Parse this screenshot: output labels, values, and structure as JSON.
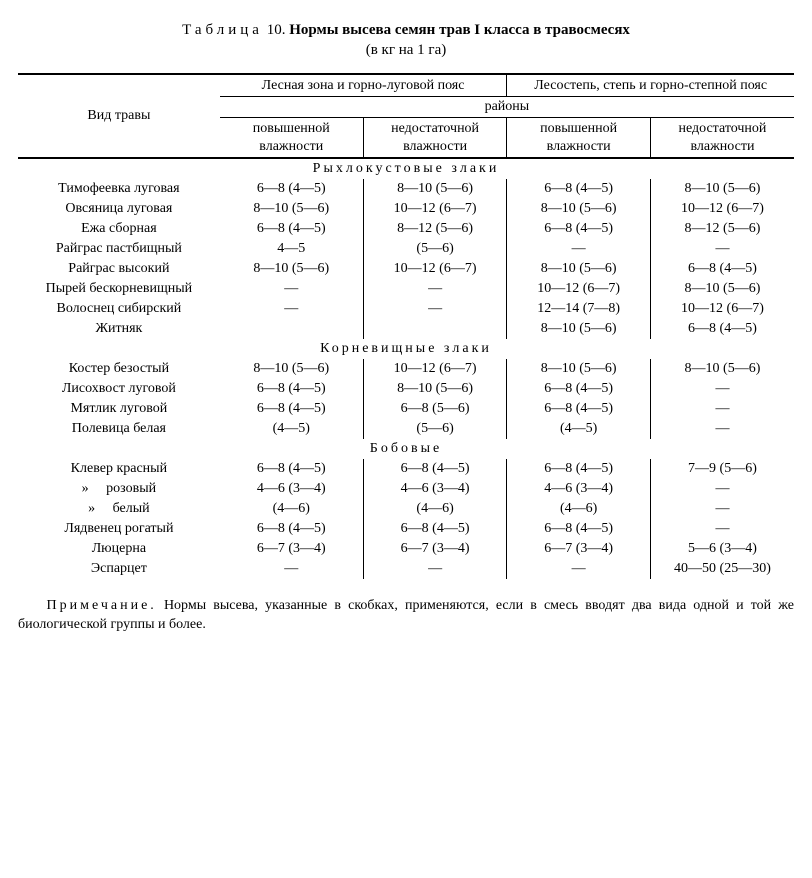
{
  "title": {
    "prefix_spaced": "Таблица",
    "num": "10.",
    "main": "Нормы высева семян трав I класса в травосмесях",
    "sub": "(в кг на 1 га)"
  },
  "header": {
    "species": "Вид травы",
    "zone1": "Лесная зона и горно-луговой пояс",
    "zone2": "Лесостепь, степь и горно-степной пояс",
    "districts": "районы",
    "col1": "повышенной влажности",
    "col2": "недостаточной влажности",
    "col3": "повышенной влажности",
    "col4": "недостаточной влажности"
  },
  "sections": {
    "s1": "Рыхлокустовые злаки",
    "s2": "Корневищные злаки",
    "s3": "Бобовые"
  },
  "rows": {
    "r1": {
      "n": "Тимофеевка луговая",
      "c1": "6—8 (4—5)",
      "c2": "8—10 (5—6)",
      "c3": "6—8 (4—5)",
      "c4": "8—10 (5—6)"
    },
    "r2": {
      "n": "Овсяница луговая",
      "c1": "8—10 (5—6)",
      "c2": "10—12 (6—7)",
      "c3": "8—10 (5—6)",
      "c4": "10—12 (6—7)"
    },
    "r3": {
      "n": "Ежа сборная",
      "c1": "6—8 (4—5)",
      "c2": "8—12 (5—6)",
      "c3": "6—8 (4—5)",
      "c4": "8—12 (5—6)"
    },
    "r4": {
      "n": "Райграс пастбищный",
      "c1": "4—5",
      "c2": "(5—6)",
      "c3": "—",
      "c4": "—"
    },
    "r5": {
      "n": "Райграс высокий",
      "c1": "8—10 (5—6)",
      "c2": "10—12 (6—7)",
      "c3": "8—10 (5—6)",
      "c4": "6—8 (4—5)"
    },
    "r6": {
      "n": "Пырей бескорневищный",
      "c1": "—",
      "c2": "—",
      "c3": "10—12 (6—7)",
      "c4": "8—10 (5—6)"
    },
    "r7": {
      "n": "Волоснец сибирский",
      "c1": "—",
      "c2": "—",
      "c3": "12—14 (7—8)",
      "c4": "10—12 (6—7)"
    },
    "r8": {
      "n": "Житняк",
      "c1": "",
      "c2": "",
      "c3": "8—10 (5—6)",
      "c4": "6—8 (4—5)"
    },
    "r9": {
      "n": "Костер безостый",
      "c1": "8—10 (5—6)",
      "c2": "10—12 (6—7)",
      "c3": "8—10 (5—6)",
      "c4": "8—10 (5—6)"
    },
    "r10": {
      "n": "Лисохвост луговой",
      "c1": "6—8 (4—5)",
      "c2": "8—10 (5—6)",
      "c3": "6—8 (4—5)",
      "c4": "—"
    },
    "r11": {
      "n": "Мятлик луговой",
      "c1": "6—8 (4—5)",
      "c2": "6—8 (5—6)",
      "c3": "6—8 (4—5)",
      "c4": "—"
    },
    "r12": {
      "n": "Полевица белая",
      "c1": "(4—5)",
      "c2": "(5—6)",
      "c3": "(4—5)",
      "c4": "—"
    },
    "r13": {
      "n": "Клевер красный",
      "c1": "6—8 (4—5)",
      "c2": "6—8 (4—5)",
      "c3": "6—8 (4—5)",
      "c4": "7—9 (5—6)"
    },
    "r14": {
      "n": "»     розовый",
      "c1": "4—6 (3—4)",
      "c2": "4—6 (3—4)",
      "c3": "4—6 (3—4)",
      "c4": "—"
    },
    "r15": {
      "n": "»     белый",
      "c1": "(4—6)",
      "c2": "(4—6)",
      "c3": "(4—6)",
      "c4": "—"
    },
    "r16": {
      "n": "Лядвенец рогатый",
      "c1": "6—8 (4—5)",
      "c2": "6—8 (4—5)",
      "c3": "6—8 (4—5)",
      "c4": "—"
    },
    "r17": {
      "n": "Люцерна",
      "c1": "6—7 (3—4)",
      "c2": "6—7 (3—4)",
      "c3": "6—7 (3—4)",
      "c4": "5—6 (3—4)"
    },
    "r18": {
      "n": "Эспарцет",
      "c1": "—",
      "c2": "—",
      "c3": "—",
      "c4": "40—50 (25—30)"
    }
  },
  "note": {
    "prefix_spaced": "Примечание.",
    "text": "Нормы высева, указанные в скобках, применяются, если в смесь вводят два вида одной и той же биологической группы и более."
  }
}
